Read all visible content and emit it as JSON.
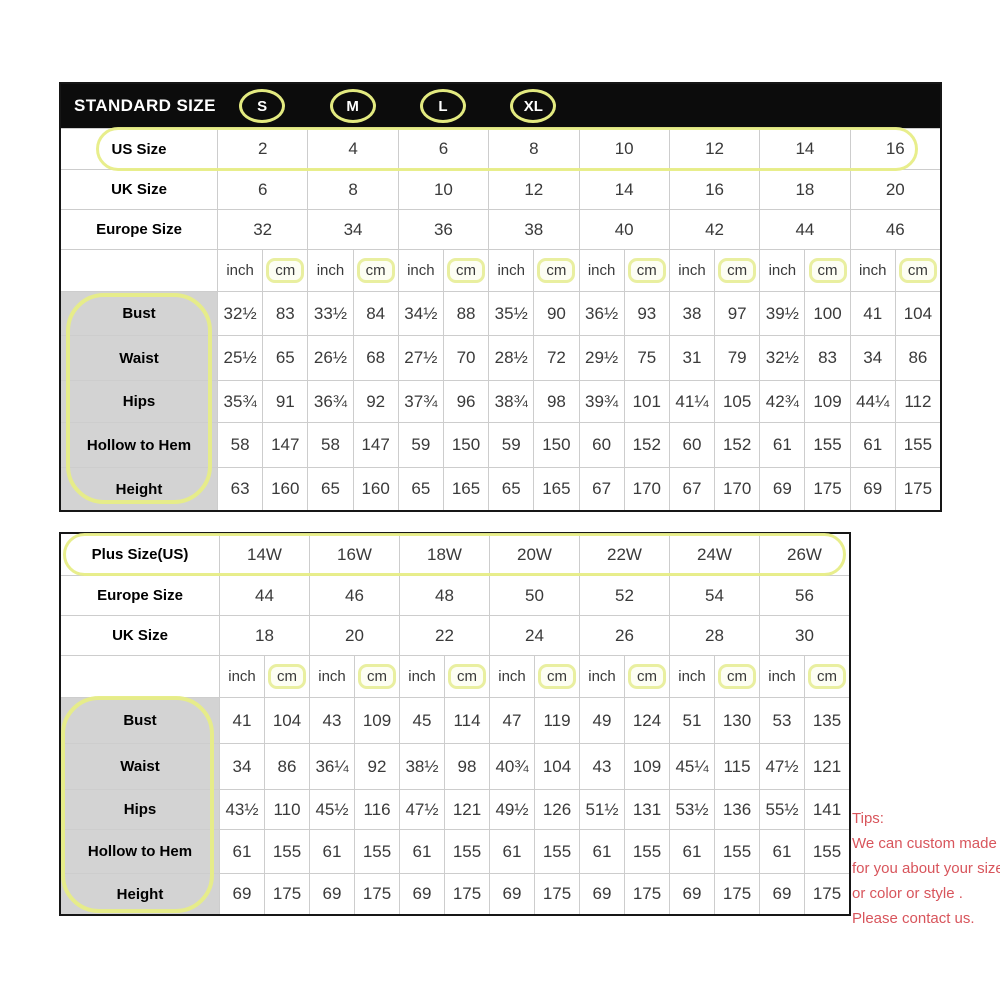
{
  "chart_data": [
    {
      "type": "table",
      "title": "STANDARD SIZE",
      "size_groups": [
        "S",
        "M",
        "L",
        "XL"
      ],
      "size_rows": [
        {
          "label": "US Size",
          "values": [
            "2",
            "4",
            "6",
            "8",
            "10",
            "12",
            "14",
            "16"
          ]
        },
        {
          "label": "UK Size",
          "values": [
            "6",
            "8",
            "10",
            "12",
            "14",
            "16",
            "18",
            "20"
          ]
        },
        {
          "label": "Europe Size",
          "values": [
            "32",
            "34",
            "36",
            "38",
            "40",
            "42",
            "44",
            "46"
          ]
        }
      ],
      "unit_pair": [
        "inch",
        "cm"
      ],
      "measure_rows": [
        {
          "label": "Bust",
          "values": [
            "32½",
            "83",
            "33½",
            "84",
            "34½",
            "88",
            "35½",
            "90",
            "36½",
            "93",
            "38",
            "97",
            "39½",
            "100",
            "41",
            "104"
          ]
        },
        {
          "label": "Waist",
          "values": [
            "25½",
            "65",
            "26½",
            "68",
            "27½",
            "70",
            "28½",
            "72",
            "29½",
            "75",
            "31",
            "79",
            "32½",
            "83",
            "34",
            "86"
          ]
        },
        {
          "label": "Hips",
          "values": [
            "35¾",
            "91",
            "36¾",
            "92",
            "37¾",
            "96",
            "38¾",
            "98",
            "39¾",
            "101",
            "41¼",
            "105",
            "42¾",
            "109",
            "44¼",
            "112"
          ]
        },
        {
          "label": "Hollow to Hem",
          "values": [
            "58",
            "147",
            "58",
            "147",
            "59",
            "150",
            "59",
            "150",
            "60",
            "152",
            "60",
            "152",
            "61",
            "155",
            "61",
            "155"
          ]
        },
        {
          "label": "Height",
          "values": [
            "63",
            "160",
            "65",
            "160",
            "65",
            "165",
            "65",
            "165",
            "67",
            "170",
            "67",
            "170",
            "69",
            "175",
            "69",
            "175"
          ]
        }
      ]
    },
    {
      "type": "table",
      "size_rows": [
        {
          "label": "Plus Size(US)",
          "values": [
            "14W",
            "16W",
            "18W",
            "20W",
            "22W",
            "24W",
            "26W"
          ]
        },
        {
          "label": "Europe Size",
          "values": [
            "44",
            "46",
            "48",
            "50",
            "52",
            "54",
            "56"
          ]
        },
        {
          "label": "UK Size",
          "values": [
            "18",
            "20",
            "22",
            "24",
            "26",
            "28",
            "30"
          ]
        }
      ],
      "unit_pair": [
        "inch",
        "cm"
      ],
      "measure_rows": [
        {
          "label": "Bust",
          "values": [
            "41",
            "104",
            "43",
            "109",
            "45",
            "114",
            "47",
            "119",
            "49",
            "124",
            "51",
            "130",
            "53",
            "135"
          ]
        },
        {
          "label": "Waist",
          "values": [
            "34",
            "86",
            "36¼",
            "92",
            "38½",
            "98",
            "40¾",
            "104",
            "43",
            "109",
            "45¼",
            "115",
            "47½",
            "121"
          ]
        },
        {
          "label": "Hips",
          "values": [
            "43½",
            "110",
            "45½",
            "116",
            "47½",
            "121",
            "49½",
            "126",
            "51½",
            "131",
            "53½",
            "136",
            "55½",
            "141"
          ]
        },
        {
          "label": "Hollow to Hem",
          "values": [
            "61",
            "155",
            "61",
            "155",
            "61",
            "155",
            "61",
            "155",
            "61",
            "155",
            "61",
            "155",
            "61",
            "155"
          ]
        },
        {
          "label": "Height",
          "values": [
            "69",
            "175",
            "69",
            "175",
            "69",
            "175",
            "69",
            "175",
            "69",
            "175",
            "69",
            "175",
            "69",
            "175"
          ]
        }
      ]
    }
  ],
  "tips": {
    "title": "Tips:",
    "lines": [
      "We can custom made",
      "for you about your size",
      "or color or style .",
      "Please contact us."
    ]
  },
  "colors": {
    "highlight_yellow": "#e7ed86",
    "header_black": "#0c0c0c",
    "label_grey": "#d3d3d3",
    "grid_grey": "#cdcdcd",
    "tips_red": "#d8555c"
  }
}
